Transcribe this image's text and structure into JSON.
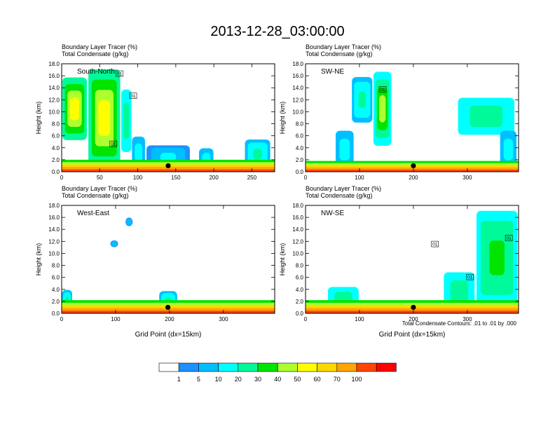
{
  "figure": {
    "title": "2013-12-28_03:00:00",
    "footnote": "Total Condensate Contours: .01 to .01 by .000"
  },
  "colorbar": {
    "levels": [
      "1",
      "5",
      "10",
      "20",
      "30",
      "40",
      "50",
      "60",
      "70",
      "100"
    ],
    "colors": [
      "#ffffff",
      "#1e90ff",
      "#00bfff",
      "#00ffff",
      "#00fa9a",
      "#00e400",
      "#adff2f",
      "#ffff00",
      "#ffd700",
      "#ffa500",
      "#ff4500",
      "#ff0000"
    ]
  },
  "chart_data": [
    {
      "type": "heatmap",
      "panel": "South-North",
      "label_line1": "Boundary Layer Tracer   (%)",
      "label_line2": "Total Condensate   (g/kg)",
      "ylabel": "Height (km)",
      "xlabel": "",
      "xlim": [
        0,
        280
      ],
      "ylim": [
        0,
        18
      ],
      "xticks": [
        0,
        50,
        100,
        150,
        200,
        250
      ],
      "yticks": [
        "0.0",
        "2.0",
        "4.0",
        "6.0",
        "8.0",
        "10.0",
        "12.0",
        "14.0",
        "16.0",
        "18.0"
      ],
      "marker": {
        "x": 140,
        "y": 1.0
      },
      "contour_labels": [
        {
          "text": "01",
          "x": 94,
          "y": 12.6
        },
        {
          "text": "01",
          "x": 68,
          "y": 4.6
        },
        {
          "text": "01",
          "x": 76,
          "y": 16.3
        }
      ],
      "plumes": [
        {
          "x0": 0,
          "x1": 34,
          "top": 16.0,
          "bottom": 5.0,
          "pct": 55
        },
        {
          "x0": 34,
          "x1": 78,
          "top": 17.5,
          "bottom": 0.4,
          "pct": 50
        },
        {
          "x0": 78,
          "x1": 92,
          "top": 14.0,
          "bottom": 3.0,
          "pct": 25
        },
        {
          "x0": 92,
          "x1": 110,
          "top": 6.0,
          "bottom": 0.4,
          "pct": 15
        },
        {
          "x0": 110,
          "x1": 170,
          "top": 4.5,
          "bottom": 0.4,
          "pct": 10
        },
        {
          "x0": 180,
          "x1": 200,
          "top": 4.0,
          "bottom": 0.4,
          "pct": 15
        },
        {
          "x0": 240,
          "x1": 275,
          "top": 5.5,
          "bottom": 0.4,
          "pct": 20
        }
      ],
      "boundary_layer": {
        "height": 2.0,
        "pct_top": 30,
        "pct_surface": 100
      }
    },
    {
      "type": "heatmap",
      "panel": "SW-NE",
      "label_line1": "Boundary Layer Tracer   (%)",
      "label_line2": "Total Condensate   (g/kg)",
      "ylabel": "Height (km)",
      "xlabel": "",
      "xlim": [
        0,
        395
      ],
      "ylim": [
        0,
        18
      ],
      "xticks": [
        0,
        100,
        200,
        300
      ],
      "yticks": [
        "0.0",
        "2.0",
        "4.0",
        "6.0",
        "8.0",
        "10.0",
        "12.0",
        "14.0",
        "16.0",
        "18.0"
      ],
      "marker": {
        "x": 200,
        "y": 1.0
      },
      "contour_labels": [
        {
          "text": "01",
          "x": 143,
          "y": 13.7
        }
      ],
      "plumes": [
        {
          "x0": 85,
          "x1": 125,
          "top": 16.0,
          "bottom": 8.0,
          "pct": 20
        },
        {
          "x0": 125,
          "x1": 160,
          "top": 17.0,
          "bottom": 4.0,
          "pct": 40
        },
        {
          "x0": 55,
          "x1": 90,
          "top": 7.0,
          "bottom": 0.4,
          "pct": 15
        },
        {
          "x0": 280,
          "x1": 390,
          "top": 12.5,
          "bottom": 6.0,
          "pct": 25
        },
        {
          "x0": 360,
          "x1": 392,
          "top": 7.0,
          "bottom": 0.4,
          "pct": 15
        }
      ],
      "boundary_layer": {
        "height": 1.8,
        "pct_top": 30,
        "pct_surface": 100
      }
    },
    {
      "type": "heatmap",
      "panel": "West-East",
      "label_line1": "Boundary Layer Tracer   (%)",
      "label_line2": "Total Condensate   (g/kg)",
      "ylabel": "Height (km)",
      "xlabel": "Grid Point (dx=15km)",
      "xlim": [
        0,
        395
      ],
      "ylim": [
        0,
        18
      ],
      "xticks": [
        0,
        100,
        200,
        300
      ],
      "yticks": [
        "0.0",
        "2.0",
        "4.0",
        "6.0",
        "8.0",
        "10.0",
        "12.0",
        "14.0",
        "16.0",
        "18.0"
      ],
      "marker": {
        "x": 197,
        "y": 1.0
      },
      "contour_labels": [],
      "plumes": [
        {
          "x0": 118,
          "x1": 132,
          "top": 16.0,
          "bottom": 14.5,
          "pct": 8
        },
        {
          "x0": 90,
          "x1": 105,
          "top": 12.2,
          "bottom": 11.0,
          "pct": 8
        },
        {
          "x0": 0,
          "x1": 20,
          "top": 4.0,
          "bottom": 0.4,
          "pct": 20
        },
        {
          "x0": 180,
          "x1": 215,
          "top": 3.8,
          "bottom": 0.4,
          "pct": 20
        }
      ],
      "boundary_layer": {
        "height": 2.2,
        "pct_top": 30,
        "pct_surface": 100
      }
    },
    {
      "type": "heatmap",
      "panel": "NW-SE",
      "label_line1": "Boundary Layer Tracer   (%)",
      "label_line2": "Total Condensate   (g/kg)",
      "ylabel": "Height (km)",
      "xlabel": "Grid Point (dx=15km)",
      "xlim": [
        0,
        395
      ],
      "ylim": [
        0,
        18
      ],
      "xticks": [
        0,
        100,
        200,
        300
      ],
      "yticks": [
        "0.0",
        "2.0",
        "4.0",
        "6.0",
        "8.0",
        "10.0",
        "12.0",
        "14.0",
        "16.0",
        "18.0"
      ],
      "marker": {
        "x": 200,
        "y": 1.0
      },
      "contour_labels": [
        {
          "text": "01",
          "x": 240,
          "y": 11.5
        },
        {
          "text": "01",
          "x": 305,
          "y": 6.0
        },
        {
          "text": "01",
          "x": 377,
          "y": 12.5
        }
      ],
      "plumes": [
        {
          "x0": 315,
          "x1": 395,
          "top": 17.5,
          "bottom": 1.0,
          "pct": 35
        },
        {
          "x0": 255,
          "x1": 315,
          "top": 7.0,
          "bottom": 0.4,
          "pct": 25
        },
        {
          "x0": 40,
          "x1": 100,
          "top": 4.5,
          "bottom": 0.4,
          "pct": 25
        }
      ],
      "boundary_layer": {
        "height": 2.2,
        "pct_top": 30,
        "pct_surface": 100
      }
    }
  ]
}
